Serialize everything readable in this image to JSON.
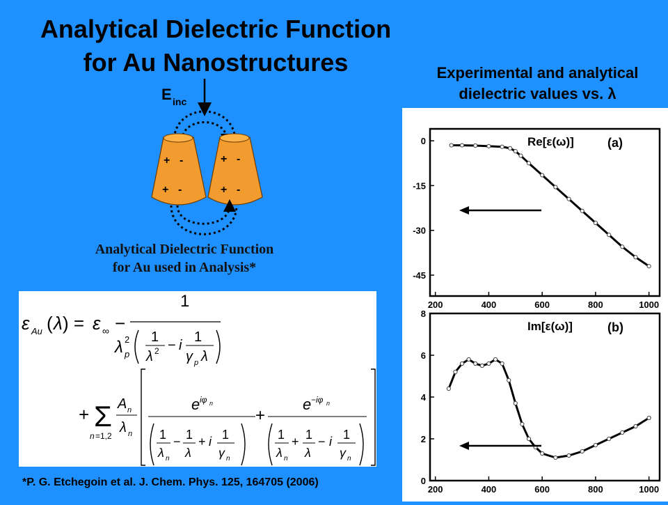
{
  "slide": {
    "title_line1": "Analytical Dielectric Function",
    "title_line2": "for Au Nanostructures",
    "right_title_line1": "Experimental and analytical",
    "right_title_line2": "dielectric values vs. λ",
    "subtitle_line1": "Analytical Dielectric Function",
    "subtitle_line2": "for Au used in Analysis*",
    "citation": "*P. G. Etchegoin et al. J. Chem. Phys. 125, 164705 (2006)"
  },
  "diagram": {
    "e_label": "E",
    "e_subscript": "inc",
    "charge_plus": "+",
    "charge_minus": "-",
    "cone_color": "#f29b2e"
  },
  "chart_data": [
    {
      "type": "line",
      "panel_label": "(a)",
      "ylabel_text": "Re[ε(ω)]",
      "x_ticks": [
        200,
        400,
        600,
        800,
        1000
      ],
      "y_ticks": [
        0,
        -15,
        -30,
        -45
      ],
      "xlim": [
        180,
        1040
      ],
      "ylim": [
        -52,
        4
      ],
      "series": [
        {
          "x": [
            260,
            300,
            350,
            400,
            450,
            480,
            500,
            520,
            550,
            600,
            650,
            700,
            750,
            800,
            850,
            900,
            950,
            1000
          ],
          "y": [
            -1.5,
            -1.5,
            -1.6,
            -1.8,
            -2.0,
            -2.5,
            -3.5,
            -5.0,
            -7.5,
            -11.5,
            -15.5,
            -19.5,
            -23.5,
            -27.5,
            -31.5,
            -35.5,
            -39.0,
            -42.0
          ]
        }
      ],
      "arrow_direction": "left"
    },
    {
      "type": "line",
      "panel_label": "(b)",
      "ylabel_text": "Im[ε(ω)]",
      "x_ticks": [
        200,
        400,
        600,
        800,
        1000
      ],
      "y_ticks": [
        0,
        2,
        4,
        6,
        8
      ],
      "xlim": [
        180,
        1040
      ],
      "ylim": [
        0,
        8
      ],
      "series": [
        {
          "x": [
            250,
            275,
            300,
            325,
            350,
            375,
            400,
            425,
            450,
            475,
            500,
            525,
            550,
            575,
            600,
            650,
            700,
            750,
            800,
            850,
            900,
            950,
            1000
          ],
          "y": [
            4.4,
            5.2,
            5.6,
            5.8,
            5.6,
            5.5,
            5.6,
            5.8,
            5.6,
            4.8,
            3.7,
            2.7,
            2.0,
            1.6,
            1.3,
            1.1,
            1.2,
            1.4,
            1.7,
            2.0,
            2.3,
            2.6,
            3.0
          ]
        }
      ],
      "arrow_direction": "left"
    }
  ]
}
